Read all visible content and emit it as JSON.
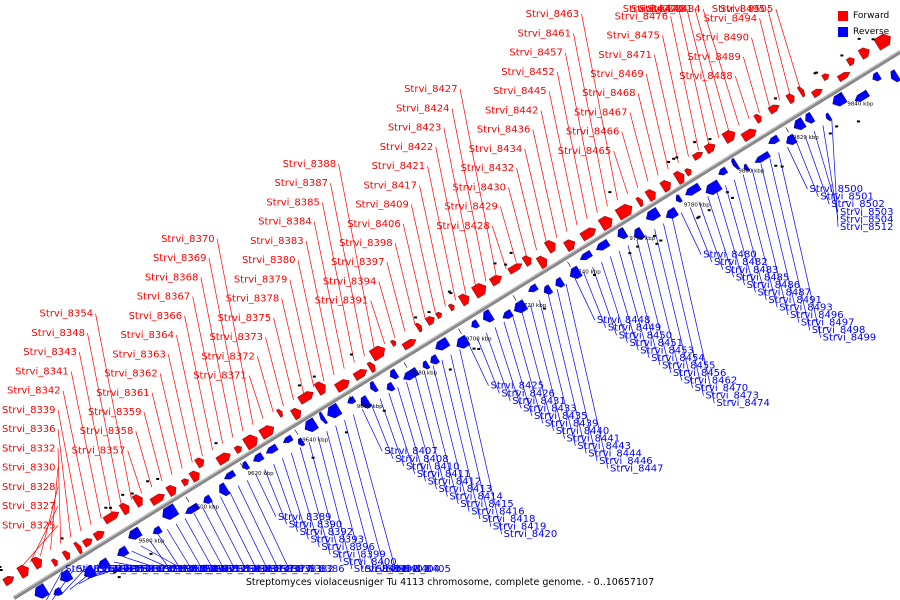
{
  "colors": {
    "forward": "#ff0000",
    "reverse": "#0000ff",
    "genome_line": "#888888",
    "text": "#000000"
  },
  "legend": {
    "forward": "Forward",
    "reverse": "Reverse"
  },
  "caption": "Streptomyces violaceusniger Tu 4113 chromosome, complete genome. - 0..10657107",
  "axis": {
    "unit": "kbp",
    "ticks": [
      {
        "label": "9580 kbp"
      },
      {
        "label": "9600 kbp"
      },
      {
        "label": "9620 kbp"
      },
      {
        "label": "9640 kbp"
      },
      {
        "label": "9660 kbp"
      },
      {
        "label": "9680 kbp"
      },
      {
        "label": "9700 kbp"
      },
      {
        "label": "9720 kbp"
      },
      {
        "label": "9740 kbp"
      },
      {
        "label": "9760 kbp"
      },
      {
        "label": "9780 kbp"
      },
      {
        "label": "9800 kbp"
      },
      {
        "label": "9820 kbp"
      },
      {
        "label": "9840 kbp"
      }
    ]
  },
  "forward_genes": [
    "Strvi_8325",
    "Strvi_8327",
    "Strvi_8328",
    "Strvi_8330",
    "Strvi_8332",
    "Strvi_8336",
    "Strvi_8339",
    "Strvi_8342",
    "Strvi_8341",
    "Strvi_8343",
    "Strvi_8348",
    "Strvi_8354",
    "Strvi_8357",
    "Strvi_8358",
    "Strvi_8359",
    "Strvi_8361",
    "Strvi_8362",
    "Strvi_8363",
    "Strvi_8364",
    "Strvi_8366",
    "Strvi_8367",
    "Strvi_8368",
    "Strvi_8369",
    "Strvi_8370",
    "Strvi_8371",
    "Strvi_8372",
    "Strvi_8373",
    "Strvi_8375",
    "Strvi_8378",
    "Strvi_8379",
    "Strvi_8380",
    "Strvi_8383",
    "Strvi_8384",
    "Strvi_8385",
    "Strvi_8387",
    "Strvi_8388",
    "Strvi_8391",
    "Strvi_8394",
    "Strvi_8397",
    "Strvi_8398",
    "Strvi_8406",
    "Strvi_8409",
    "Strvi_8417",
    "Strvi_8421",
    "Strvi_8422",
    "Strvi_8423",
    "Strvi_8424",
    "Strvi_8427",
    "Strvi_8428",
    "Strvi_8429",
    "Strvi_8430",
    "Strvi_8432",
    "Strvi_8434",
    "Strvi_8436",
    "Strvi_8442",
    "Strvi_8445",
    "Strvi_8452",
    "Strvi_8457",
    "Strvi_8461",
    "Strvi_8463",
    "Strvi_8465",
    "Strvi_8466",
    "Strvi_8467",
    "Strvi_8468",
    "Strvi_8469",
    "Strvi_8471",
    "Strvi_8475",
    "Strvi_8476",
    "Strvi_8477",
    "Strvi_8479",
    "Strvi_8481",
    "Strvi_8484",
    "Strvi_8488",
    "Strvi_8489",
    "Strvi_8490",
    "Strvi_8494",
    "Strvi_8495",
    "Strvi_8505"
  ],
  "reverse_genes": [
    "Strvi_8351",
    "Strvi_8349",
    "Strvi_8345",
    "Strvi_8350",
    "Strvi_8346",
    "Strvi_8323",
    "Strvi_8321",
    "Strvi_8319",
    "Strvi_8318",
    "Strvi_8322",
    "Strvi_8329",
    "Strvi_8338",
    "Strvi_8344",
    "Strvi_8347",
    "Strvi_8352",
    "Strvi_8353",
    "Strvi_8360",
    "Strvi_8365",
    "Strvi_8374",
    "Strvi_8376",
    "Strvi_8377",
    "Strvi_8381",
    "Strvi_8382",
    "Strvi_8386",
    "Strvi_8389",
    "Strvi_8390",
    "Strvi_8392",
    "Strvi_8393",
    "Strvi_8396",
    "Strvi_8399",
    "Strvi_8400",
    "Strvi_8401",
    "Strvi_8402",
    "Strvi_8403",
    "Strvi_8404",
    "Strvi_8405",
    "Strvi_8407",
    "Strvi_8408",
    "Strvi_8410",
    "Strvi_8411",
    "Strvi_8412",
    "Strvi_8413",
    "Strvi_8414",
    "Strvi_8415",
    "Strvi_8416",
    "Strvi_8418",
    "Strvi_8419",
    "Strvi_8420",
    "Strvi_8425",
    "Strvi_8426",
    "Strvi_8431",
    "Strvi_8433",
    "Strvi_8435",
    "Strvi_8439",
    "Strvi_8440",
    "Strvi_8441",
    "Strvi_8443",
    "Strvi_8444",
    "Strvi_8446",
    "Strvi_8447",
    "Strvi_8448",
    "Strvi_8449",
    "Strvi_8450",
    "Strvi_8451",
    "Strvi_8453",
    "Strvi_8454",
    "Strvi_8455",
    "Strvi_8456",
    "Strvi_8462",
    "Strvi_8470",
    "Strvi_8473",
    "Strvi_8474",
    "Strvi_8480",
    "Strvi_8482",
    "Strvi_8483",
    "Strvi_8485",
    "Strvi_8486",
    "Strvi_8487",
    "Strvi_8491",
    "Strvi_8493",
    "Strvi_8496",
    "Strvi_8497",
    "Strvi_8498",
    "Strvi_8499",
    "Strvi_8500",
    "Strvi_8501",
    "Strvi_8502",
    "Strvi_8503",
    "Strvi_8504",
    "Strvi_8512"
  ]
}
